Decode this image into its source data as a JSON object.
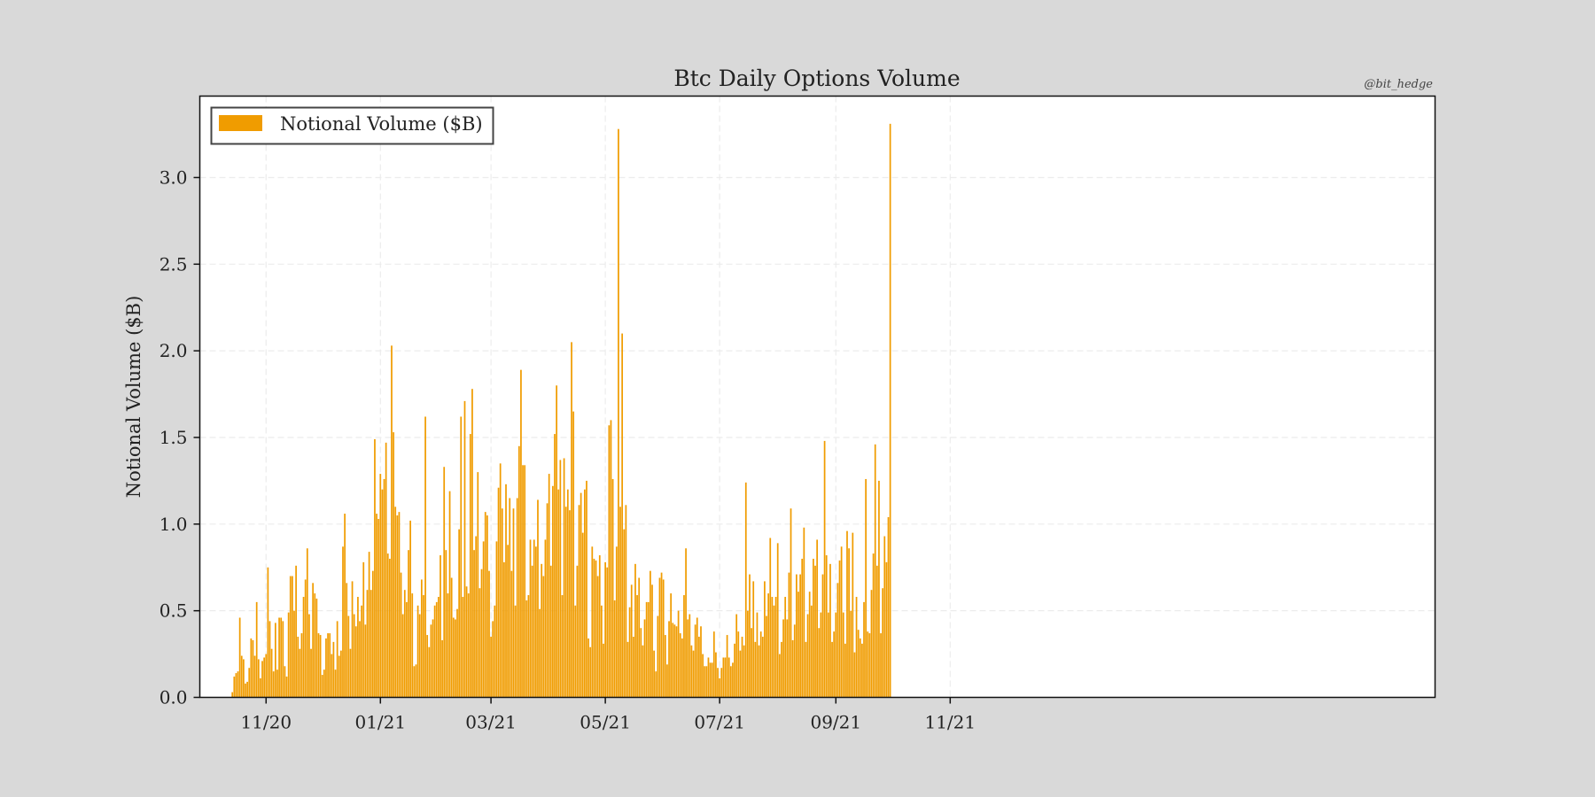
{
  "chart_data": {
    "type": "bar",
    "title": "Btc Daily Options Volume",
    "watermark": "@bit_hedge",
    "xlabel": "",
    "ylabel": "Notional Volume ($B)",
    "ylim": [
      0,
      3.47
    ],
    "yticks": [
      0.0,
      0.5,
      1.0,
      1.5,
      2.0,
      2.5,
      3.0
    ],
    "ytick_labels": [
      "0.0",
      "0.5",
      "1.0",
      "1.5",
      "2.0",
      "2.5",
      "3.0"
    ],
    "xticks": [
      "11/20",
      "01/21",
      "03/21",
      "05/21",
      "07/21",
      "09/21",
      "11/21"
    ],
    "x_start": "2020-10-14",
    "bar_color": "#f09c00",
    "grid": true,
    "legend_position": "top-left",
    "series": [
      {
        "name": "Notional Volume ($B)",
        "values": [
          0.03,
          0.12,
          0.14,
          0.15,
          0.46,
          0.24,
          0.22,
          0.08,
          0.09,
          0.17,
          0.34,
          0.33,
          0.24,
          0.55,
          0.22,
          0.11,
          0.21,
          0.23,
          0.25,
          0.75,
          0.44,
          0.28,
          0.15,
          0.43,
          0.16,
          0.46,
          0.46,
          0.44,
          0.18,
          0.12,
          0.49,
          0.7,
          0.7,
          0.5,
          0.76,
          0.35,
          0.28,
          0.37,
          0.58,
          0.68,
          0.86,
          0.48,
          0.28,
          0.66,
          0.6,
          0.57,
          0.37,
          0.36,
          0.13,
          0.16,
          0.34,
          0.37,
          0.37,
          0.25,
          0.32,
          0.16,
          0.44,
          0.24,
          0.27,
          0.87,
          1.06,
          0.66,
          0.47,
          0.28,
          0.67,
          0.48,
          0.41,
          0.58,
          0.44,
          0.53,
          0.78,
          0.42,
          0.62,
          0.84,
          0.62,
          0.73,
          1.49,
          1.06,
          1.03,
          1.29,
          1.2,
          1.26,
          1.47,
          0.83,
          0.8,
          2.03,
          1.53,
          1.1,
          1.05,
          1.07,
          0.72,
          0.48,
          0.62,
          0.55,
          0.85,
          1.02,
          0.6,
          0.18,
          0.19,
          0.53,
          0.48,
          0.68,
          0.59,
          1.62,
          0.36,
          0.29,
          0.42,
          0.45,
          0.53,
          0.55,
          0.58,
          0.82,
          0.33,
          1.33,
          0.85,
          0.6,
          1.19,
          0.69,
          0.46,
          0.45,
          0.51,
          0.97,
          1.62,
          0.58,
          1.71,
          0.64,
          0.6,
          1.52,
          1.78,
          0.85,
          0.93,
          1.3,
          0.63,
          0.74,
          0.9,
          1.07,
          1.05,
          0.73,
          0.35,
          0.44,
          0.53,
          0.9,
          1.21,
          1.35,
          1.09,
          0.78,
          1.23,
          0.88,
          1.15,
          0.73,
          1.09,
          0.53,
          1.15,
          1.45,
          1.89,
          1.34,
          1.34,
          0.56,
          0.59,
          0.91,
          0.76,
          0.91,
          0.87,
          1.14,
          0.51,
          0.77,
          0.7,
          0.91,
          1.12,
          1.29,
          0.76,
          1.22,
          1.52,
          1.8,
          1.2,
          1.37,
          0.59,
          1.38,
          1.1,
          1.2,
          1.08,
          2.05,
          1.65,
          0.53,
          0.76,
          1.11,
          1.18,
          0.95,
          1.2,
          1.25,
          0.34,
          0.29,
          0.87,
          0.8,
          0.79,
          0.7,
          0.82,
          0.53,
          0.31,
          0.78,
          0.75,
          1.57,
          1.6,
          1.26,
          0.56,
          0.87,
          3.28,
          1.1,
          2.1,
          0.97,
          1.11,
          0.32,
          0.52,
          0.65,
          0.35,
          0.77,
          0.59,
          0.69,
          0.4,
          0.3,
          0.45,
          0.55,
          0.55,
          0.73,
          0.65,
          0.27,
          0.15,
          0.47,
          0.69,
          0.72,
          0.68,
          0.36,
          0.19,
          0.44,
          0.6,
          0.43,
          0.42,
          0.41,
          0.5,
          0.37,
          0.34,
          0.59,
          0.86,
          0.45,
          0.48,
          0.3,
          0.27,
          0.42,
          0.46,
          0.35,
          0.41,
          0.25,
          0.18,
          0.18,
          0.23,
          0.2,
          0.2,
          0.38,
          0.26,
          0.17,
          0.11,
          0.17,
          0.23,
          0.23,
          0.36,
          0.23,
          0.18,
          0.2,
          0.31,
          0.48,
          0.38,
          0.27,
          0.35,
          0.3,
          1.24,
          0.5,
          0.71,
          0.4,
          0.67,
          0.32,
          0.49,
          0.3,
          0.38,
          0.35,
          0.67,
          0.47,
          0.6,
          0.92,
          0.58,
          0.53,
          0.58,
          0.89,
          0.25,
          0.32,
          0.45,
          0.58,
          0.45,
          0.72,
          1.09,
          0.33,
          0.42,
          0.71,
          0.61,
          0.71,
          0.8,
          0.98,
          0.32,
          0.48,
          0.61,
          0.53,
          0.8,
          0.76,
          0.91,
          0.4,
          0.49,
          0.71,
          1.48,
          0.82,
          0.49,
          0.77,
          0.32,
          0.38,
          0.49,
          0.66,
          0.79,
          0.87,
          0.49,
          0.31,
          0.96,
          0.86,
          0.5,
          0.95,
          0.26,
          0.58,
          0.39,
          0.34,
          0.31,
          0.55,
          1.26,
          0.38,
          0.37,
          0.62,
          0.83,
          1.46,
          0.76,
          1.25,
          0.37,
          0.63,
          0.93,
          0.78,
          1.04,
          3.31
        ]
      }
    ]
  }
}
